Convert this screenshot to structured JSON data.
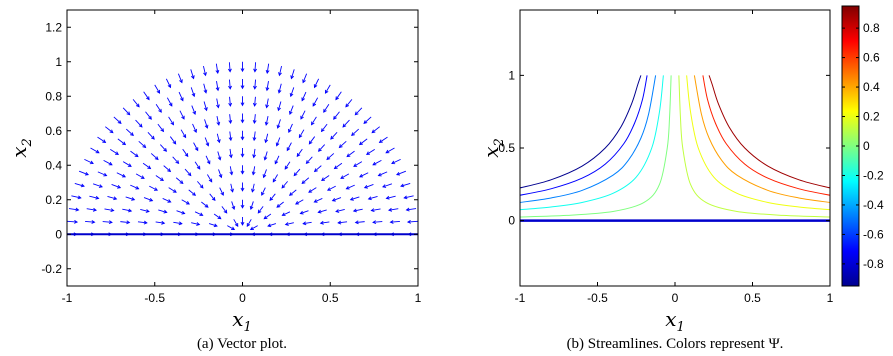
{
  "chart_data": [
    {
      "type": "vector",
      "caption": "(a)  Vector plot.",
      "xlabel": "x1",
      "ylabel": "x2",
      "xlim": [
        -1,
        1
      ],
      "ylim": [
        -0.3,
        1.3
      ],
      "xticks": [
        "-1",
        "-0.5",
        "0",
        "0.5",
        "1"
      ],
      "yticks": [
        "-0.2",
        "0",
        "0.2",
        "0.4",
        "0.6",
        "0.8",
        "1",
        "1.2"
      ],
      "grid": false,
      "arrow_color": "#0000ff",
      "arrow_field": {
        "radii": [
          0.1,
          0.2,
          0.3,
          0.4,
          0.5,
          0.6,
          0.7,
          0.8,
          0.9,
          1.0
        ],
        "arrows_per_arc": [
          6,
          10,
          14,
          18,
          22,
          26,
          30,
          34,
          38,
          42
        ],
        "direction": "toward origin along radius"
      },
      "boundary": {
        "y": 0,
        "color": "#0000cc"
      }
    },
    {
      "type": "line",
      "caption": "(b)  Streamlines. Colors represent Ψ.",
      "xlabel": "x1",
      "ylabel": "x2",
      "xlim": [
        -1,
        1
      ],
      "ylim": [
        -0.45,
        1.45
      ],
      "xticks": [
        "-1",
        "-0.5",
        "0",
        "0.5",
        "1"
      ],
      "yticks": [
        "0",
        "0.5",
        "1"
      ],
      "grid": false,
      "boundary": {
        "y": 0,
        "color": "#0000cc"
      },
      "series": [
        {
          "psi": -0.9,
          "color": "#00008f",
          "x": [
            -1,
            -0.8,
            -0.6,
            -0.45,
            -0.35,
            -0.28,
            -0.24,
            -0.22
          ],
          "y": [
            0.225,
            0.281,
            0.375,
            0.5,
            0.643,
            0.804,
            0.937,
            1.0
          ]
        },
        {
          "psi": -0.7,
          "color": "#0000ff",
          "x": [
            -1,
            -0.8,
            -0.6,
            -0.45,
            -0.33,
            -0.26,
            -0.21,
            -0.18
          ],
          "y": [
            0.175,
            0.219,
            0.292,
            0.389,
            0.53,
            0.673,
            0.833,
            1.0
          ]
        },
        {
          "psi": -0.5,
          "color": "#0080ff",
          "x": [
            -1,
            -0.8,
            -0.6,
            -0.4,
            -0.3,
            -0.22,
            -0.17,
            -0.125
          ],
          "y": [
            0.125,
            0.156,
            0.208,
            0.313,
            0.417,
            0.568,
            0.735,
            1.0
          ]
        },
        {
          "psi": -0.3,
          "color": "#10ffef",
          "x": [
            -1,
            -0.8,
            -0.6,
            -0.4,
            -0.25,
            -0.15,
            -0.1,
            -0.075
          ],
          "y": [
            0.075,
            0.094,
            0.125,
            0.188,
            0.3,
            0.5,
            0.75,
            1.0
          ]
        },
        {
          "psi": -0.1,
          "color": "#80ff80",
          "x": [
            -1,
            -0.7,
            -0.4,
            -0.2,
            -0.1,
            -0.05,
            -0.035,
            -0.025
          ],
          "y": [
            0.025,
            0.036,
            0.063,
            0.125,
            0.25,
            0.5,
            0.714,
            1.0
          ]
        },
        {
          "psi": 0.1,
          "color": "#c0ff40",
          "x": [
            1,
            0.7,
            0.4,
            0.2,
            0.1,
            0.05,
            0.035,
            0.025
          ],
          "y": [
            0.025,
            0.036,
            0.063,
            0.125,
            0.25,
            0.5,
            0.714,
            1.0
          ]
        },
        {
          "psi": 0.3,
          "color": "#efff10",
          "x": [
            1,
            0.8,
            0.6,
            0.4,
            0.25,
            0.15,
            0.1,
            0.075
          ],
          "y": [
            0.075,
            0.094,
            0.125,
            0.188,
            0.3,
            0.5,
            0.75,
            1.0
          ]
        },
        {
          "psi": 0.5,
          "color": "#ff9f00",
          "x": [
            1,
            0.8,
            0.6,
            0.4,
            0.3,
            0.22,
            0.17,
            0.125
          ],
          "y": [
            0.125,
            0.156,
            0.208,
            0.313,
            0.417,
            0.568,
            0.735,
            1.0
          ]
        },
        {
          "psi": 0.7,
          "color": "#ff2000",
          "x": [
            1,
            0.8,
            0.6,
            0.45,
            0.33,
            0.26,
            0.21,
            0.18
          ],
          "y": [
            0.175,
            0.219,
            0.292,
            0.389,
            0.53,
            0.673,
            0.833,
            1.0
          ]
        },
        {
          "psi": 0.9,
          "color": "#9f0000",
          "x": [
            1,
            0.8,
            0.6,
            0.45,
            0.35,
            0.28,
            0.24,
            0.22
          ],
          "y": [
            0.225,
            0.281,
            0.375,
            0.5,
            0.643,
            0.804,
            0.937,
            1.0
          ]
        }
      ],
      "colorbar": {
        "range": [
          -0.95,
          0.95
        ],
        "ticks": [
          "0.8",
          "0.6",
          "0.4",
          "0.2",
          "0",
          "-0.2",
          "-0.4",
          "-0.6",
          "-0.8"
        ],
        "colormap": "jet",
        "stops": [
          "#00008f",
          "#0000ff",
          "#00ffff",
          "#80ff80",
          "#ffff00",
          "#ff0000",
          "#800000"
        ]
      }
    }
  ]
}
